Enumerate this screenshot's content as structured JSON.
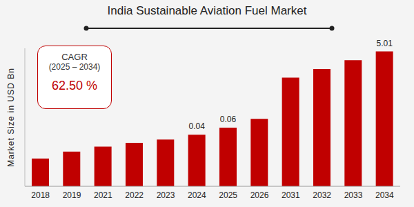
{
  "chart_data": {
    "type": "bar",
    "title": "India Sustainable Aviation Fuel Market",
    "y_label": "Market Size in USD Bn",
    "categories": [
      "2018",
      "2019",
      "2021",
      "2022",
      "2023",
      "2024",
      "2025",
      "2026",
      "2031",
      "2032",
      "2033",
      "2034"
    ],
    "values": [
      0.01,
      0.015,
      0.02,
      0.025,
      0.03,
      0.04,
      0.06,
      0.1,
      1.1,
      1.8,
      3.0,
      5.01
    ],
    "value_labels": [
      null,
      null,
      null,
      null,
      null,
      "0.04",
      "0.06",
      null,
      null,
      null,
      null,
      "5.01"
    ],
    "data_labels": true,
    "color": "#c00000",
    "log": "y",
    "ylim": [
      0.002,
      6
    ],
    "tick_labels": "x",
    "grid": false,
    "annotation": {
      "title": "CAGR",
      "period": "(2025 – 2034)",
      "value": "62.50 %"
    }
  }
}
